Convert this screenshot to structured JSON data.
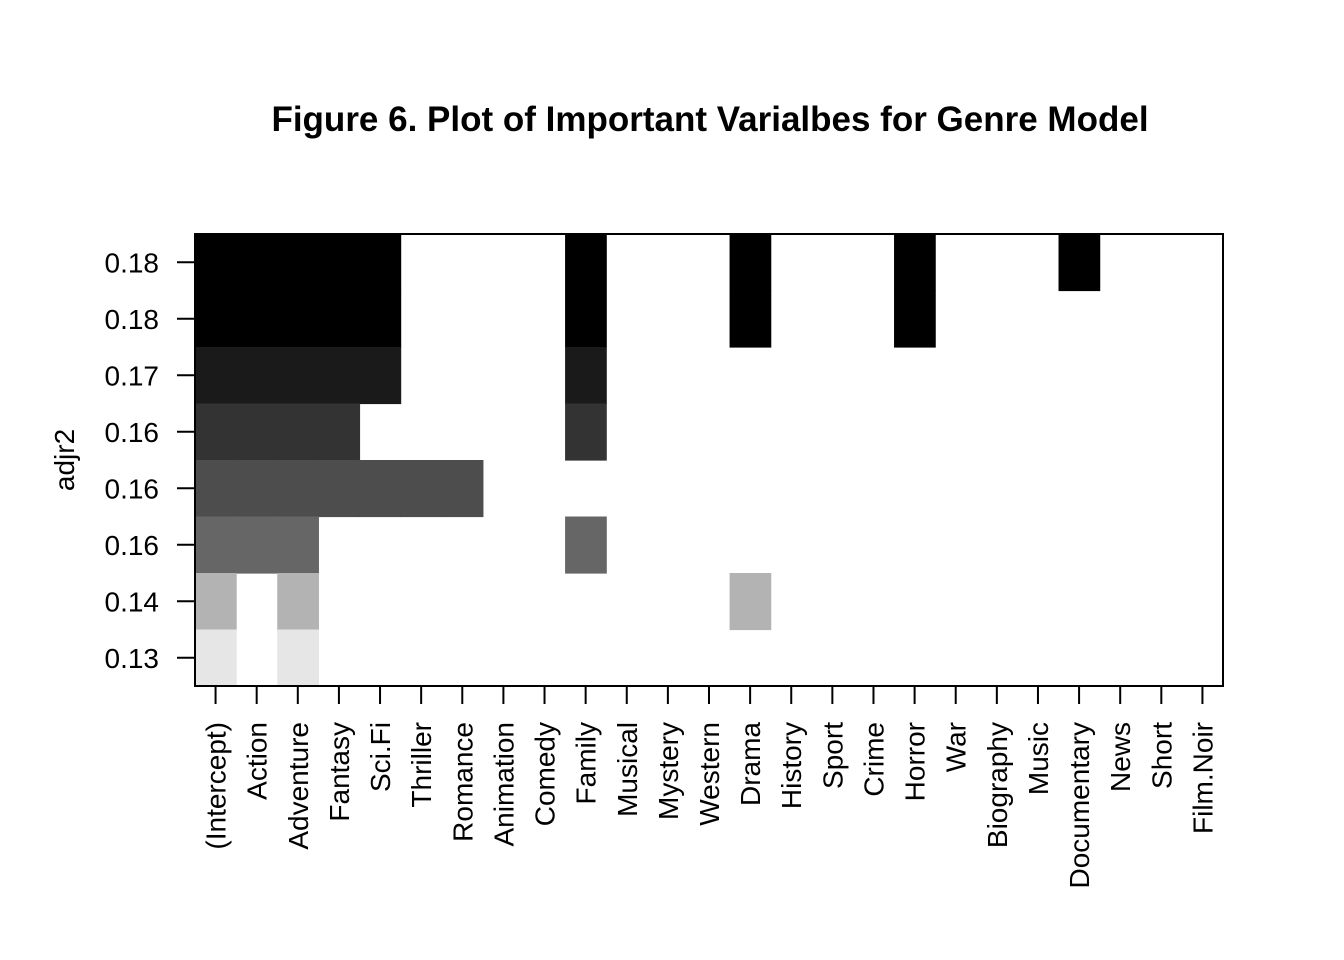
{
  "chart_data": {
    "type": "heatmap",
    "title": "Figure 6. Plot of Important Varialbes for Genre Model",
    "xlabel": "",
    "ylabel": "adjr2",
    "grid": false,
    "legend": "none",
    "variables": [
      "(Intercept)",
      "Action",
      "Adventure",
      "Fantasy",
      "Sci.Fi",
      "Thriller",
      "Romance",
      "Animation",
      "Comedy",
      "Family",
      "Musical",
      "Mystery",
      "Western",
      "Drama",
      "History",
      "Sport",
      "Crime",
      "Horror",
      "War",
      "Biography",
      "Music",
      "Documentary",
      "News",
      "Short",
      "Film.Noir"
    ],
    "row_labels": [
      "0.18",
      "0.18",
      "0.17",
      "0.16",
      "0.16",
      "0.16",
      "0.14",
      "0.13"
    ],
    "row_shades": [
      "#000000",
      "#000000",
      "#1a1a1a",
      "#333333",
      "#4d4d4d",
      "#666666",
      "#b3b3b3",
      "#e6e6e6"
    ],
    "included": [
      [
        "(Intercept)",
        "Action",
        "Adventure",
        "Fantasy",
        "Sci.Fi",
        "Family",
        "Drama",
        "Horror",
        "Documentary"
      ],
      [
        "(Intercept)",
        "Action",
        "Adventure",
        "Fantasy",
        "Sci.Fi",
        "Family",
        "Drama",
        "Horror"
      ],
      [
        "(Intercept)",
        "Action",
        "Adventure",
        "Fantasy",
        "Sci.Fi",
        "Family"
      ],
      [
        "(Intercept)",
        "Action",
        "Adventure",
        "Fantasy",
        "Family"
      ],
      [
        "(Intercept)",
        "Action",
        "Adventure",
        "Fantasy",
        "Sci.Fi",
        "Thriller",
        "Romance"
      ],
      [
        "(Intercept)",
        "Action",
        "Adventure",
        "Family"
      ],
      [
        "(Intercept)",
        "Adventure",
        "Drama"
      ],
      [
        "(Intercept)",
        "Adventure"
      ]
    ]
  }
}
